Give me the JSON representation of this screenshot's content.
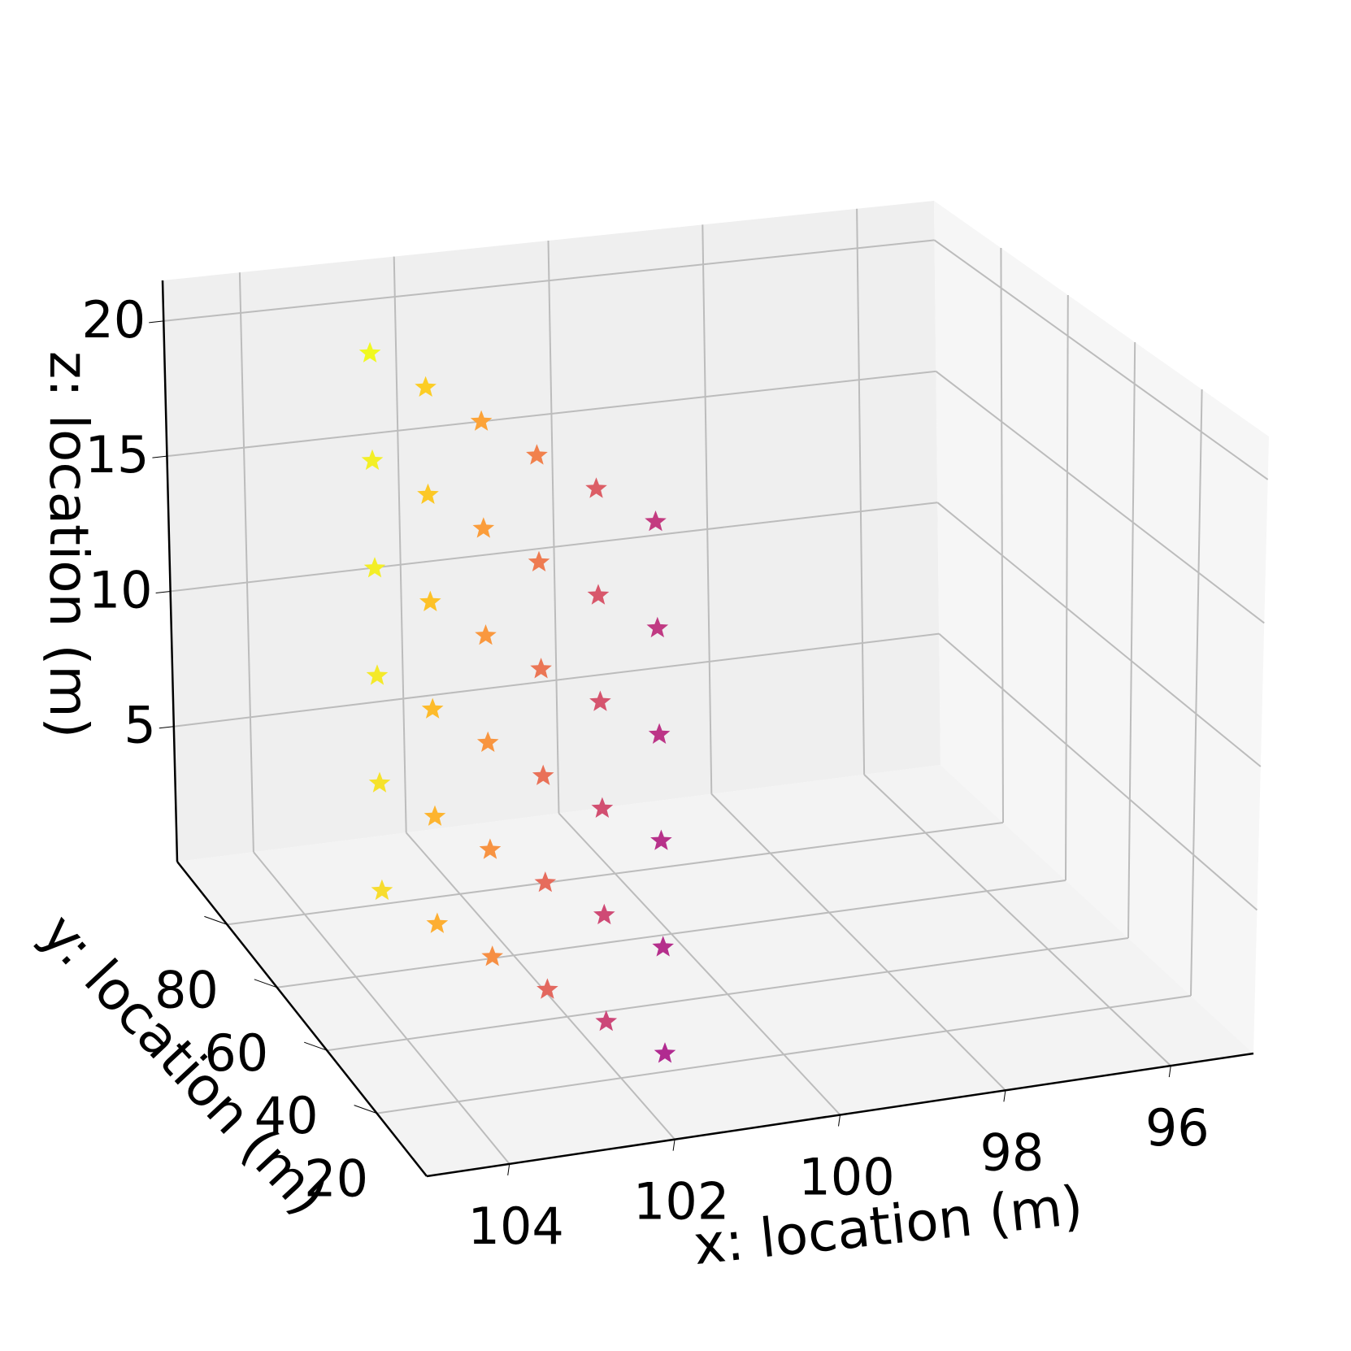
{
  "chart_data": {
    "type": "scatter3d",
    "title": "",
    "marker": "star",
    "colormap": "plasma",
    "xlabel": "x: location (m)",
    "ylabel": "y: location (m)",
    "zlabel": "z: location (m)",
    "xlim": [
      95,
      105
    ],
    "ylim": [
      0,
      100
    ],
    "zlim": [
      0,
      21.5
    ],
    "xticks": [
      104,
      102,
      100,
      98,
      96
    ],
    "xtick_labels": [
      "104",
      "102",
      "100",
      "98",
      "96"
    ],
    "yticks": [
      20,
      40,
      60,
      80
    ],
    "ytick_labels": [
      "20",
      "40",
      "60",
      "80"
    ],
    "zticks": [
      5,
      10,
      15,
      20
    ],
    "ztick_labels": [
      "5",
      "10",
      "15",
      "20"
    ],
    "grid": true,
    "pane_colors": {
      "back": "#f0f0f0",
      "side": "#f7f7f7",
      "floor": "#f3f3f3"
    },
    "grid_color": "#bbbbbb",
    "points": [
      {
        "x": 103.0,
        "y": 80,
        "z": 20.5,
        "color": "#f0f921"
      },
      {
        "x": 103.0,
        "y": 80,
        "z": 16.5,
        "color": "#f3ef27"
      },
      {
        "x": 103.0,
        "y": 80,
        "z": 12.5,
        "color": "#f3ee27"
      },
      {
        "x": 103.0,
        "y": 80,
        "z": 8.5,
        "color": "#f4e92a"
      },
      {
        "x": 103.0,
        "y": 80,
        "z": 4.5,
        "color": "#f6e22c"
      },
      {
        "x": 103.0,
        "y": 80,
        "z": 0.5,
        "color": "#f7dc2e"
      },
      {
        "x": 102.3,
        "y": 80,
        "z": 19.0,
        "color": "#fccd25"
      },
      {
        "x": 102.3,
        "y": 80,
        "z": 15.0,
        "color": "#fcc826"
      },
      {
        "x": 102.3,
        "y": 80,
        "z": 11.0,
        "color": "#fdc127"
      },
      {
        "x": 102.3,
        "y": 80,
        "z": 7.0,
        "color": "#fdbb2b"
      },
      {
        "x": 102.3,
        "y": 80,
        "z": 3.0,
        "color": "#fdb42f"
      },
      {
        "x": 102.3,
        "y": 80,
        "z": -1.0,
        "color": "#fdae32"
      },
      {
        "x": 101.6,
        "y": 80,
        "z": 17.5,
        "color": "#fca338"
      },
      {
        "x": 101.6,
        "y": 80,
        "z": 13.5,
        "color": "#fb9d3b"
      },
      {
        "x": 101.6,
        "y": 80,
        "z": 9.5,
        "color": "#fa983e"
      },
      {
        "x": 101.6,
        "y": 80,
        "z": 5.5,
        "color": "#f89540"
      },
      {
        "x": 101.6,
        "y": 80,
        "z": 1.5,
        "color": "#f79342"
      },
      {
        "x": 101.6,
        "y": 80,
        "z": -2.5,
        "color": "#f68f44"
      },
      {
        "x": 100.9,
        "y": 80,
        "z": 16.0,
        "color": "#f1814d"
      },
      {
        "x": 100.9,
        "y": 80,
        "z": 12.0,
        "color": "#ee7b51"
      },
      {
        "x": 100.9,
        "y": 80,
        "z": 8.0,
        "color": "#eb7655"
      },
      {
        "x": 100.9,
        "y": 80,
        "z": 4.0,
        "color": "#e97158"
      },
      {
        "x": 100.9,
        "y": 80,
        "z": 0.0,
        "color": "#e66c5c"
      },
      {
        "x": 100.9,
        "y": 80,
        "z": -4.0,
        "color": "#e3685f"
      },
      {
        "x": 100.15,
        "y": 80,
        "z": 14.5,
        "color": "#dc5e66"
      },
      {
        "x": 100.15,
        "y": 80,
        "z": 10.5,
        "color": "#d8576b"
      },
      {
        "x": 100.15,
        "y": 80,
        "z": 6.5,
        "color": "#d5546e"
      },
      {
        "x": 100.15,
        "y": 80,
        "z": 2.5,
        "color": "#d24f71"
      },
      {
        "x": 100.15,
        "y": 80,
        "z": -1.5,
        "color": "#cf4a75"
      },
      {
        "x": 100.15,
        "y": 80,
        "z": -5.5,
        "color": "#cc4778"
      },
      {
        "x": 99.4,
        "y": 80,
        "z": 13.0,
        "color": "#c33b80"
      },
      {
        "x": 99.4,
        "y": 80,
        "z": 9.0,
        "color": "#c03a83"
      },
      {
        "x": 99.4,
        "y": 80,
        "z": 5.0,
        "color": "#bc3587"
      },
      {
        "x": 99.4,
        "y": 80,
        "z": 1.0,
        "color": "#b7318a"
      },
      {
        "x": 99.4,
        "y": 80,
        "z": -3.0,
        "color": "#b52f8c"
      },
      {
        "x": 99.4,
        "y": 80,
        "z": -7.0,
        "color": "#b12a90"
      }
    ]
  }
}
